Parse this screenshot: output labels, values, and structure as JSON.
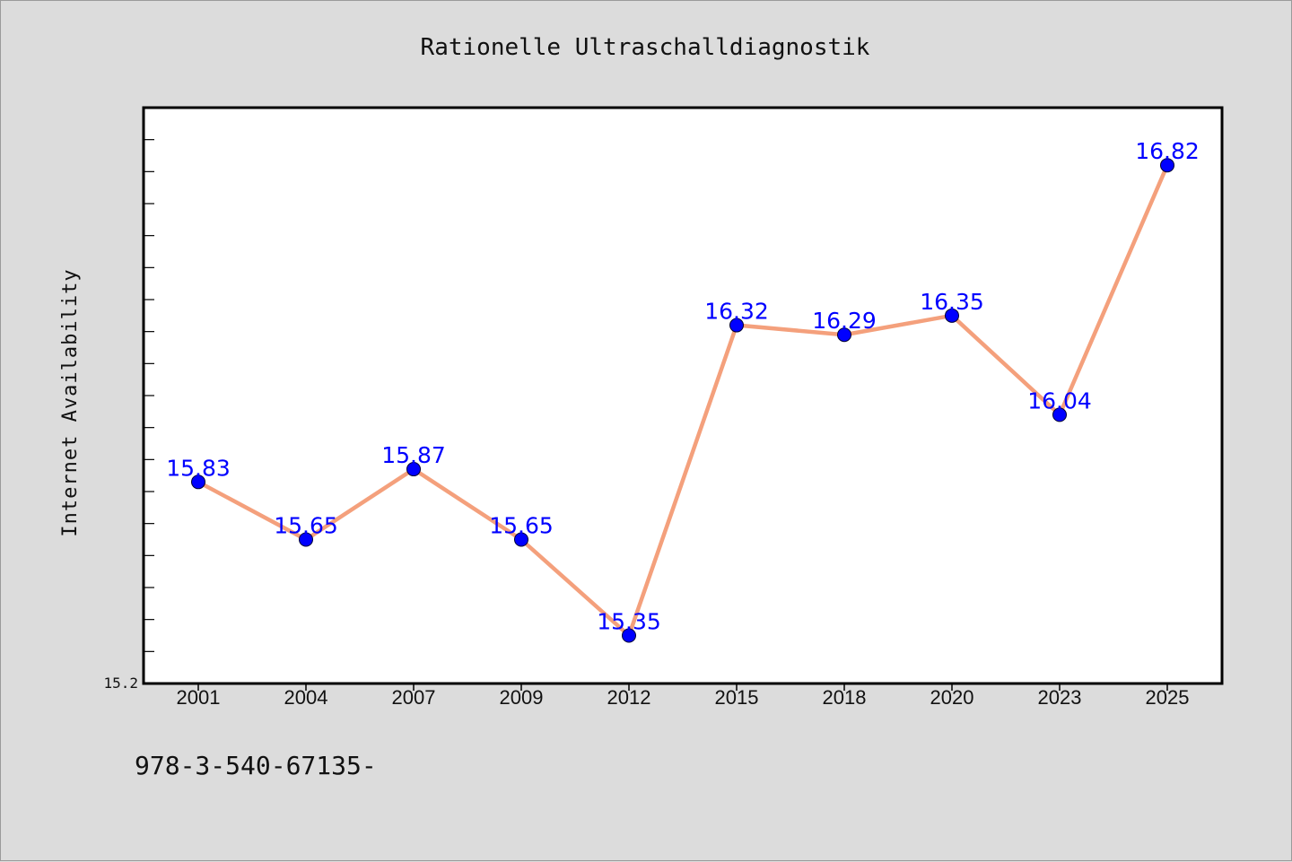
{
  "chart_data": {
    "type": "line",
    "title": "Rationelle Ultraschalldiagnostik",
    "xlabel": "",
    "ylabel": "Internet Availability",
    "categories": [
      "2001",
      "2004",
      "2007",
      "2009",
      "2012",
      "2015",
      "2018",
      "2020",
      "2023",
      "2025"
    ],
    "values": [
      15.83,
      15.65,
      15.87,
      15.65,
      15.35,
      16.32,
      16.29,
      16.35,
      16.04,
      16.82
    ],
    "data_labels": [
      "15.83",
      "15.65",
      "15.87",
      "15.65",
      "15.35",
      "16.32",
      "16.29",
      "16.35",
      "16.04",
      "16.82"
    ],
    "ylim": [
      15.2,
      17.0
    ],
    "y_tick_step": 0.1,
    "y_min_label": "15.2",
    "grid": false,
    "legend": "none",
    "line_color": "#f4a07c",
    "marker_color": "#0000ff",
    "label_color": "#0000ff"
  },
  "footer": {
    "text": "978-3-540-67135-"
  }
}
